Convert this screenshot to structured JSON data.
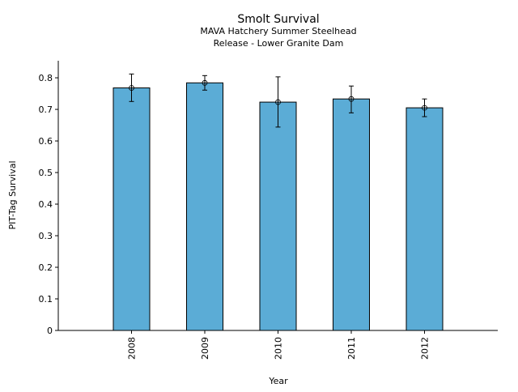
{
  "chart_data": {
    "type": "bar",
    "title": "Smolt Survival",
    "subtitle_lines": [
      "MAVA Hatchery Summer Steelhead",
      "Release - Lower Granite Dam"
    ],
    "xlabel": "Year",
    "ylabel": "PIT-Tag Survival",
    "categories": [
      "2008",
      "2009",
      "2010",
      "2011",
      "2012"
    ],
    "values": [
      0.768,
      0.784,
      0.723,
      0.733,
      0.705
    ],
    "error_upper": [
      0.812,
      0.807,
      0.803,
      0.774,
      0.733
    ],
    "error_lower": [
      0.725,
      0.761,
      0.644,
      0.689,
      0.677
    ],
    "yticks": [
      "0",
      "0.1",
      "0.2",
      "0.3",
      "0.4",
      "0.5",
      "0.6",
      "0.7",
      "0.8"
    ],
    "ylim": [
      0,
      0.854
    ],
    "xlim": [
      -1,
      5
    ],
    "grid": false,
    "bar_color": "#5bacd6",
    "edge_color": "#000000"
  }
}
